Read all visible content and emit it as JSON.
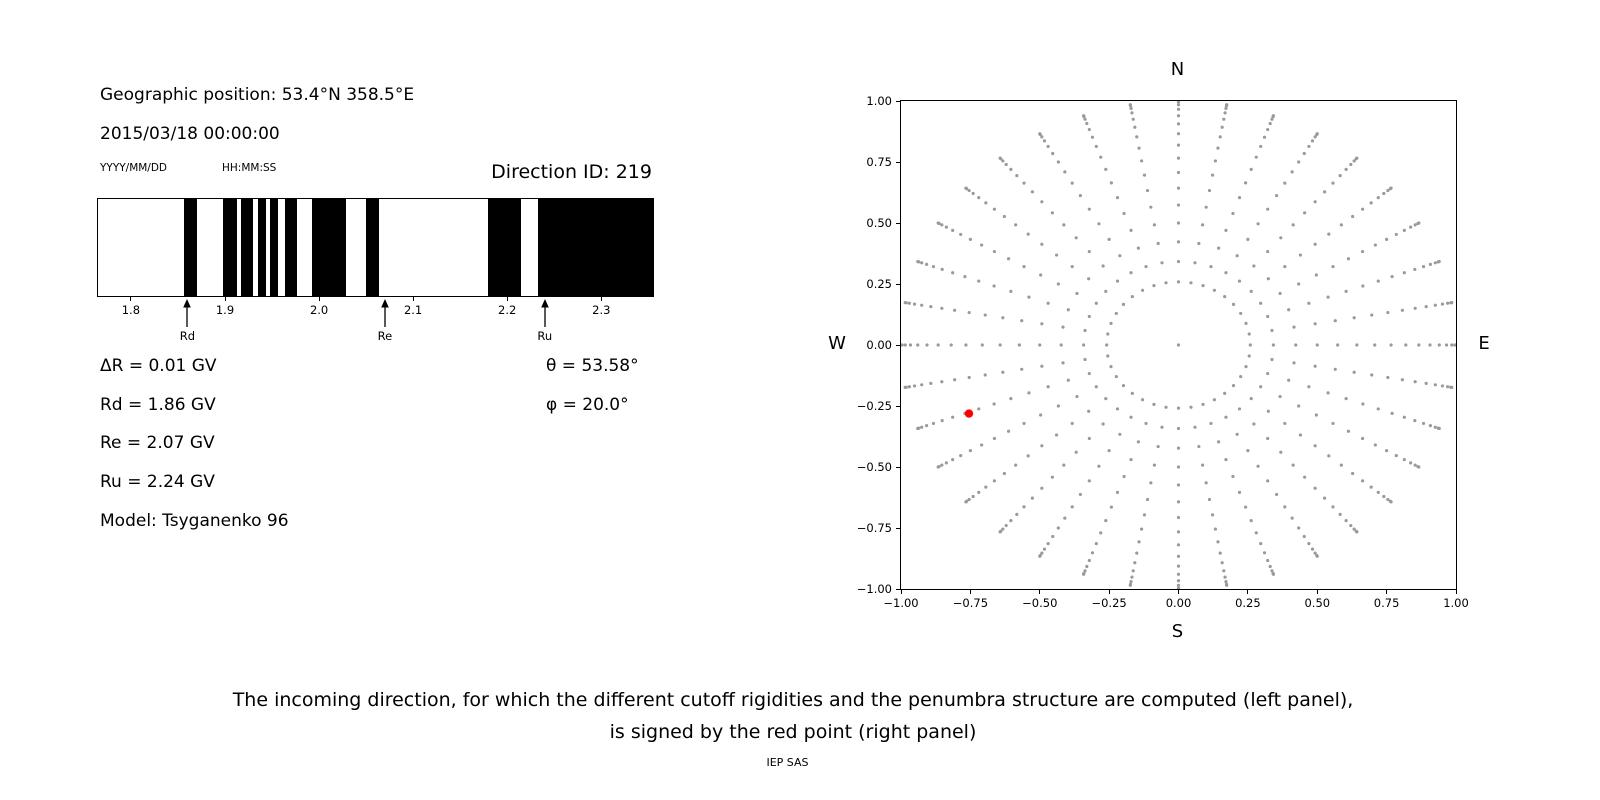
{
  "header": {
    "geographic_position": "Geographic position: 53.4°N 358.5°E",
    "datetime": "2015/03/18 00:00:00",
    "date_format": "YYYY/MM/DD",
    "time_format": "HH:MM:SS",
    "direction_id": "Direction ID: 219"
  },
  "results": {
    "delta_r": "ΔR = 0.01 GV",
    "rd": "Rd = 1.86 GV",
    "re": "Re = 2.07 GV",
    "ru": "Ru = 2.24 GV",
    "model": "Model: Tsyganenko 96",
    "theta": "θ = 53.58°",
    "phi": "φ = 20.0°"
  },
  "caption": {
    "line1": "The incoming direction, for which the different cutoff rigidities and the penumbra structure are computed (left panel),",
    "line2": "is signed by the red point (right panel)",
    "credit": "IEP SAS"
  },
  "chart_data": [
    {
      "name": "penumbra-structure",
      "type": "bar",
      "title": "Direction ID: 219",
      "xlim": [
        1.765,
        2.355
      ],
      "x_ticks": [
        1.8,
        1.9,
        2.0,
        2.1,
        2.2,
        2.3
      ],
      "x_tick_labels": [
        "1.8",
        "1.9",
        "2.0",
        "2.1",
        "2.2",
        "2.3"
      ],
      "bar_color": "#000000",
      "allowed_bands_gv": [
        [
          1.856,
          1.87
        ],
        [
          1.898,
          1.913
        ],
        [
          1.917,
          1.93
        ],
        [
          1.935,
          1.944
        ],
        [
          1.948,
          1.956
        ],
        [
          1.964,
          1.977
        ],
        [
          1.992,
          2.029
        ],
        [
          2.05,
          2.064
        ],
        [
          2.18,
          2.215
        ],
        [
          2.233,
          2.355
        ]
      ],
      "markers": [
        {
          "label": "Rd",
          "value_gv": 1.86
        },
        {
          "label": "Re",
          "value_gv": 2.07
        },
        {
          "label": "Ru",
          "value_gv": 2.24
        }
      ],
      "values": {
        "delta_R_GV": 0.01,
        "Rd_GV": 1.86,
        "Re_GV": 2.07,
        "Ru_GV": 2.24,
        "theta_deg": 53.58,
        "phi_deg": 20.0,
        "model": "Tsyganenko 96"
      }
    },
    {
      "name": "direction-map",
      "type": "scatter",
      "xlim": [
        -1,
        1
      ],
      "ylim": [
        -1,
        1
      ],
      "x_ticks": [
        -1,
        -0.75,
        -0.5,
        -0.25,
        0,
        0.25,
        0.5,
        0.75,
        1
      ],
      "x_tick_labels": [
        "−1.00",
        "−0.75",
        "−0.50",
        "−0.25",
        "0.00",
        "0.25",
        "0.50",
        "0.75",
        "1.00"
      ],
      "y_ticks": [
        1,
        0.75,
        0.5,
        0.25,
        0,
        -0.25,
        -0.5,
        -0.75,
        -1
      ],
      "y_tick_labels": [
        "1.00",
        "0.75",
        "0.50",
        "0.25",
        "0.00",
        "−0.25",
        "−0.50",
        "−0.75",
        "−1.00"
      ],
      "compass": {
        "top": "N",
        "bottom": "S",
        "left": "W",
        "right": "E"
      },
      "point_color": "#9a9a9a",
      "direction_grid": {
        "azimuth_deg_start": 0,
        "azimuth_deg_step": 10,
        "azimuth_count": 36,
        "zenith_deg": [
          15,
          20,
          25,
          30,
          35,
          40,
          45,
          50,
          55,
          60,
          65,
          70,
          75,
          80,
          85,
          90
        ],
        "radius_rule": "sin(zenith)",
        "include_center_point": true
      },
      "selected_point": {
        "x": -0.755,
        "y": -0.281,
        "color": "#ff0000"
      }
    }
  ]
}
